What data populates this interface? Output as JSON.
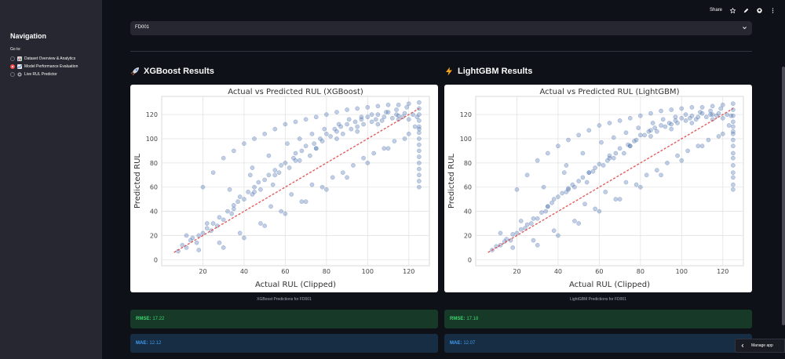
{
  "sidebar": {
    "title": "Navigation",
    "goto_label": "Go to:",
    "items": [
      {
        "label": "Dataset Overview & Analytics",
        "icon": "bar-chart-icon",
        "selected": false
      },
      {
        "label": "Model Performance Evaluation",
        "icon": "chart-icon",
        "selected": true
      },
      {
        "label": "Live RUL Predictor",
        "icon": "gear-icon",
        "selected": false
      }
    ]
  },
  "toolbar": {
    "share_label": "Share",
    "icons": [
      "star-icon",
      "edit-icon",
      "github-icon",
      "more-icon"
    ]
  },
  "dataset_select": {
    "value": "FD001"
  },
  "colors": {
    "accent": "#ff4b4b",
    "scatter": "#4c72b0",
    "line": "#dd4444",
    "success": "#3dd56d",
    "info": "#3d9df3"
  },
  "xgboost": {
    "title": "XGBoost Results",
    "icon": "rocket-icon",
    "caption": "XGBoost Predictions for FD001",
    "rmse_label": "RMSE:",
    "rmse_value": "17.22",
    "mae_label": "MAE:",
    "mae_value": "12.12"
  },
  "lightgbm": {
    "title": "LightGBM Results",
    "icon": "lightning-icon",
    "caption": "LightGBM Predictions for FD001",
    "rmse_label": "RMSE:",
    "rmse_value": "17.18",
    "mae_label": "MAE:",
    "mae_value": "12.07"
  },
  "chart_data": [
    {
      "type": "scatter",
      "title": "Actual vs Predicted RUL (XGBoost)",
      "xlabel": "Actual RUL (Clipped)",
      "ylabel": "Predicted RUL",
      "xlim": [
        0,
        130
      ],
      "ylim": [
        -5,
        135
      ],
      "xticks": [
        20,
        40,
        60,
        80,
        100,
        120
      ],
      "yticks": [
        0,
        20,
        40,
        60,
        80,
        100,
        120
      ],
      "grid": true,
      "reference_line": {
        "x": [
          6,
          125
        ],
        "y": [
          6,
          125
        ]
      },
      "x": [
        8,
        10,
        12,
        14,
        15,
        17,
        18,
        20,
        22,
        24,
        25,
        27,
        28,
        30,
        32,
        34,
        35,
        37,
        38,
        40,
        42,
        44,
        45,
        47,
        48,
        50,
        52,
        54,
        55,
        57,
        58,
        60,
        62,
        64,
        65,
        67,
        68,
        70,
        72,
        74,
        75,
        77,
        78,
        80,
        82,
        84,
        85,
        87,
        88,
        90,
        92,
        94,
        95,
        97,
        98,
        100,
        102,
        104,
        105,
        107,
        108,
        110,
        112,
        114,
        115,
        117,
        118,
        120,
        122,
        124,
        125,
        125,
        125,
        125,
        125,
        125,
        125,
        125,
        125,
        125,
        125,
        125,
        125,
        125,
        125,
        125,
        20,
        25,
        30,
        35,
        40,
        45,
        50,
        55,
        60,
        65,
        70,
        75,
        80,
        85,
        90,
        95,
        100,
        105,
        110,
        115,
        120,
        30,
        40,
        50,
        60,
        70,
        80,
        90,
        100,
        110,
        120,
        35,
        45,
        55,
        65,
        75,
        85,
        95,
        105,
        115,
        12,
        18,
        22,
        28,
        33,
        38,
        43,
        48,
        53,
        58,
        63,
        68,
        73,
        78,
        83,
        88,
        93,
        98,
        103,
        108,
        113,
        118,
        123,
        44,
        52,
        61,
        67,
        73,
        79,
        86,
        91,
        97,
        102,
        109,
        114,
        119
      ],
      "y": [
        7,
        12,
        10,
        16,
        18,
        14,
        20,
        22,
        26,
        24,
        30,
        28,
        35,
        33,
        40,
        38,
        45,
        48,
        52,
        50,
        56,
        54,
        60,
        64,
        58,
        66,
        70,
        62,
        74,
        72,
        78,
        80,
        76,
        84,
        88,
        82,
        90,
        94,
        86,
        96,
        92,
        100,
        98,
        104,
        102,
        108,
        106,
        110,
        104,
        112,
        108,
        114,
        110,
        116,
        112,
        118,
        114,
        116,
        120,
        115,
        118,
        122,
        117,
        120,
        119,
        118,
        121,
        116,
        120,
        118,
        65,
        75,
        85,
        95,
        100,
        105,
        110,
        115,
        120,
        125,
        130,
        90,
        80,
        70,
        60,
        108,
        60,
        72,
        84,
        90,
        96,
        100,
        104,
        108,
        112,
        114,
        116,
        118,
        120,
        122,
        124,
        125,
        126,
        127,
        128,
        128,
        129,
        10,
        18,
        28,
        38,
        48,
        58,
        68,
        80,
        92,
        104,
        42,
        56,
        70,
        82,
        92,
        100,
        106,
        112,
        116,
        20,
        8,
        30,
        14,
        58,
        22,
        70,
        30,
        44,
        40,
        54,
        48,
        62,
        60,
        68,
        72,
        78,
        84,
        88,
        92,
        98,
        100,
        110,
        76,
        86,
        96,
        100,
        104,
        108,
        112,
        116,
        118,
        120,
        122,
        124,
        126
      ]
    },
    {
      "type": "scatter",
      "title": "Actual vs Predicted RUL (LightGBM)",
      "xlabel": "Actual RUL (Clipped)",
      "ylabel": "Predicted RUL",
      "xlim": [
        0,
        130
      ],
      "ylim": [
        -5,
        135
      ],
      "xticks": [
        20,
        40,
        60,
        80,
        100,
        120
      ],
      "yticks": [
        0,
        20,
        40,
        60,
        80,
        100,
        120
      ],
      "grid": true,
      "reference_line": {
        "x": [
          6,
          125
        ],
        "y": [
          6,
          125
        ]
      },
      "x": [
        8,
        10,
        12,
        14,
        15,
        17,
        18,
        20,
        22,
        24,
        25,
        27,
        28,
        30,
        32,
        34,
        35,
        37,
        38,
        40,
        42,
        44,
        45,
        47,
        48,
        50,
        52,
        54,
        55,
        57,
        58,
        60,
        62,
        64,
        65,
        67,
        68,
        70,
        72,
        74,
        75,
        77,
        78,
        80,
        82,
        84,
        85,
        87,
        88,
        90,
        92,
        94,
        95,
        97,
        98,
        100,
        102,
        104,
        105,
        107,
        108,
        110,
        112,
        114,
        115,
        117,
        118,
        120,
        122,
        124,
        125,
        125,
        125,
        125,
        125,
        125,
        125,
        125,
        125,
        125,
        125,
        125,
        125,
        125,
        125,
        125,
        20,
        25,
        30,
        35,
        40,
        45,
        50,
        55,
        60,
        65,
        70,
        75,
        80,
        85,
        90,
        95,
        100,
        105,
        110,
        115,
        120,
        30,
        40,
        50,
        60,
        70,
        80,
        90,
        100,
        110,
        120,
        35,
        45,
        55,
        65,
        75,
        85,
        95,
        105,
        115,
        12,
        18,
        22,
        28,
        33,
        38,
        43,
        48,
        53,
        58,
        63,
        68,
        73,
        78,
        83,
        88,
        93,
        98,
        103,
        108,
        113,
        118,
        123,
        44,
        52,
        61,
        67,
        73,
        79,
        86,
        91,
        97,
        102,
        109,
        114,
        119
      ],
      "y": [
        8,
        11,
        12,
        15,
        17,
        16,
        21,
        22,
        25,
        26,
        29,
        30,
        34,
        34,
        39,
        40,
        44,
        47,
        50,
        52,
        55,
        56,
        59,
        62,
        60,
        65,
        68,
        64,
        72,
        73,
        76,
        79,
        78,
        82,
        86,
        84,
        88,
        92,
        88,
        95,
        94,
        98,
        99,
        103,
        103,
        106,
        107,
        109,
        106,
        111,
        110,
        113,
        112,
        115,
        113,
        117,
        115,
        117,
        119,
        116,
        118,
        121,
        118,
        120,
        120,
        119,
        121,
        117,
        120,
        119,
        62,
        72,
        84,
        94,
        99,
        104,
        110,
        114,
        119,
        124,
        129,
        88,
        78,
        68,
        58,
        106,
        58,
        70,
        82,
        88,
        94,
        99,
        103,
        107,
        111,
        113,
        115,
        117,
        119,
        121,
        123,
        124,
        125,
        126,
        126,
        127,
        128,
        12,
        20,
        30,
        40,
        50,
        60,
        70,
        82,
        94,
        104,
        44,
        58,
        72,
        84,
        94,
        102,
        108,
        113,
        116,
        22,
        10,
        32,
        16,
        60,
        24,
        72,
        32,
        46,
        42,
        56,
        50,
        64,
        62,
        70,
        74,
        80,
        86,
        90,
        94,
        99,
        102,
        111,
        78,
        88,
        97,
        101,
        105,
        109,
        113,
        116,
        118,
        120,
        122,
        123,
        125
      ]
    }
  ]
}
